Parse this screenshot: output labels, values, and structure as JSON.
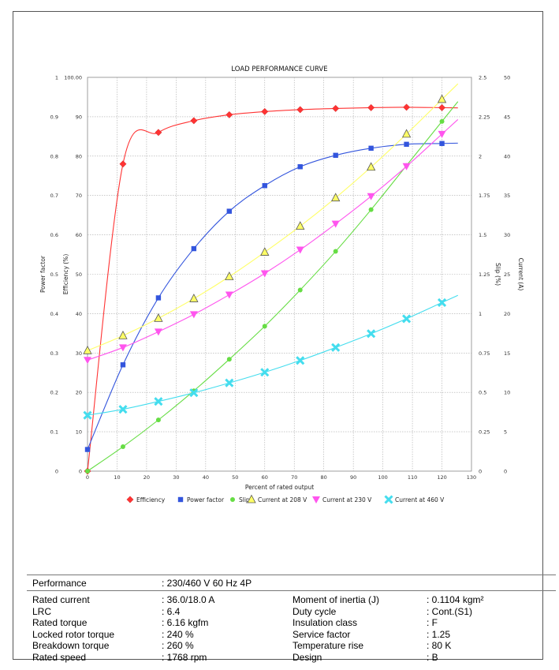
{
  "chart_data": {
    "type": "line",
    "title": "LOAD PERFORMANCE CURVE",
    "xlabel": "Percent of rated output",
    "xlim": [
      0,
      130
    ],
    "x_ticks": [
      "0",
      "10",
      "20",
      "30",
      "40",
      "50",
      "60",
      "70",
      "80",
      "90",
      "100",
      "110",
      "120",
      "130"
    ],
    "axes": {
      "power_factor": {
        "label": "Power factor",
        "lim": [
          0,
          1
        ],
        "ticks": [
          "0",
          "0.1",
          "0.2",
          "0.3",
          "0.4",
          "0.5",
          "0.6",
          "0.7",
          "0.8",
          "0.9",
          "1"
        ]
      },
      "efficiency": {
        "label": "Efficiency (%)",
        "lim": [
          0,
          100
        ],
        "ticks": [
          "0",
          "10",
          "20",
          "30",
          "40",
          "50",
          "60",
          "70",
          "80",
          "90",
          "100.00"
        ]
      },
      "slip": {
        "label": "Slip (%)",
        "lim": [
          0,
          2.5
        ],
        "ticks": [
          "0",
          "0.25",
          "0.5",
          "0.75",
          "1",
          "1.25",
          "1.5",
          "1.75",
          "2",
          "2.25",
          "2.5"
        ]
      },
      "current": {
        "label": "Current (A)",
        "lim": [
          0,
          50
        ],
        "ticks": [
          "0",
          "5",
          "10",
          "15",
          "20",
          "25",
          "30",
          "35",
          "40",
          "45",
          "50"
        ]
      }
    },
    "grid": true,
    "legend_position": "bottom",
    "series": [
      {
        "name": "Efficiency",
        "axis": "efficiency",
        "color": "#ff3333",
        "marker": "diamond",
        "x": [
          0,
          12,
          24,
          36,
          48,
          60,
          72,
          84,
          96,
          108,
          120
        ],
        "values": [
          0,
          78,
          86,
          89,
          90.5,
          91.3,
          91.8,
          92.1,
          92.3,
          92.4,
          92.3
        ]
      },
      {
        "name": "Power factor",
        "axis": "power_factor",
        "color": "#3355dd",
        "marker": "square",
        "x": [
          0,
          12,
          24,
          36,
          48,
          60,
          72,
          84,
          96,
          108,
          120
        ],
        "values": [
          0.055,
          0.27,
          0.44,
          0.565,
          0.66,
          0.725,
          0.773,
          0.802,
          0.82,
          0.83,
          0.832
        ]
      },
      {
        "name": "Slip",
        "axis": "slip",
        "color": "#66dd44",
        "marker": "circle",
        "x": [
          0,
          12,
          24,
          36,
          48,
          60,
          72,
          84,
          96,
          108,
          120
        ],
        "values": [
          0,
          0.155,
          0.325,
          0.51,
          0.71,
          0.92,
          1.15,
          1.395,
          1.66,
          1.94,
          2.22
        ]
      },
      {
        "name": "Current at 208 V",
        "axis": "current",
        "color": "#ffff66",
        "marker": "triangle",
        "x": [
          0,
          12,
          24,
          36,
          48,
          60,
          72,
          84,
          96,
          108,
          120
        ],
        "values": [
          15.3,
          17.2,
          19.4,
          21.9,
          24.7,
          27.8,
          31.1,
          34.7,
          38.6,
          42.8,
          47.2
        ]
      },
      {
        "name": "Current at 230 V",
        "axis": "current",
        "color": "#ff55ee",
        "marker": "inverted-triangle",
        "x": [
          0,
          12,
          24,
          36,
          48,
          60,
          72,
          84,
          96,
          108,
          120
        ],
        "values": [
          14.1,
          15.7,
          17.7,
          19.9,
          22.4,
          25.1,
          28.1,
          31.4,
          34.9,
          38.7,
          42.8
        ]
      },
      {
        "name": "Current at 460 V",
        "axis": "current",
        "color": "#44ddee",
        "marker": "x",
        "x": [
          0,
          12,
          24,
          36,
          48,
          60,
          72,
          84,
          96,
          108,
          120
        ],
        "values": [
          7.1,
          7.85,
          8.85,
          9.95,
          11.2,
          12.55,
          14.05,
          15.7,
          17.45,
          19.35,
          21.4
        ]
      }
    ]
  },
  "spec": {
    "header": {
      "label": "Performance",
      "value": ": 230/460 V 60 Hz 4P"
    },
    "left": [
      {
        "label": "Rated current",
        "value": ": 36.0/18.0 A"
      },
      {
        "label": "LRC",
        "value": ": 6.4"
      },
      {
        "label": "Rated torque",
        "value": ": 6.16 kgfm"
      },
      {
        "label": "Locked rotor torque",
        "value": ": 240 %"
      },
      {
        "label": "Breakdown torque",
        "value": ": 260 %"
      },
      {
        "label": "Rated speed",
        "value": ": 1768 rpm"
      }
    ],
    "right": [
      {
        "label": "Moment of inertia (J)",
        "value": ": 0.1104 kgm²"
      },
      {
        "label": "Duty cycle",
        "value": ": Cont.(S1)"
      },
      {
        "label": "Insulation class",
        "value": ": F"
      },
      {
        "label": "Service factor",
        "value": ": 1.25"
      },
      {
        "label": "Temperature rise",
        "value": ": 80 K"
      },
      {
        "label": "Design",
        "value": ": B"
      }
    ]
  }
}
